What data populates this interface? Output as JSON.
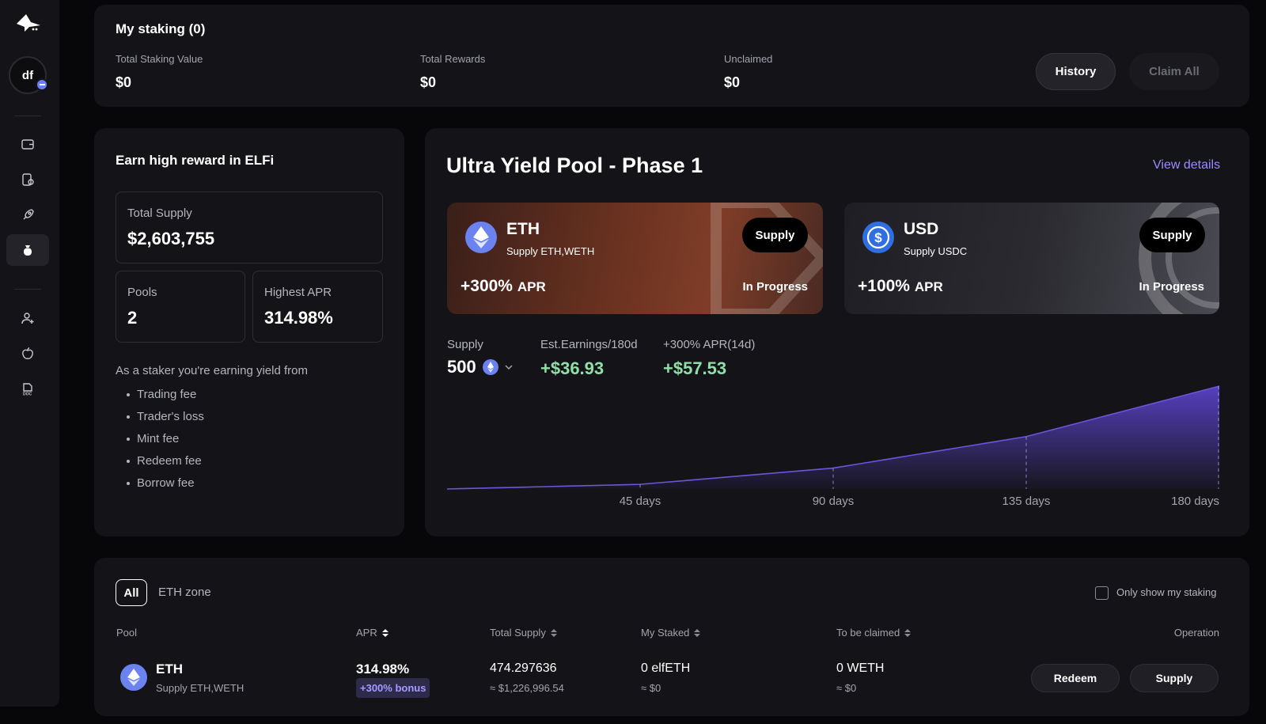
{
  "sidebar": {
    "avatar_initials": "df",
    "nav": [
      {
        "name": "wallet-icon",
        "active": false
      },
      {
        "name": "pool-icon",
        "active": false
      },
      {
        "name": "rocket-icon",
        "active": false
      },
      {
        "name": "bag-icon",
        "active": true
      },
      {
        "name": "user-add-icon",
        "active": false
      },
      {
        "name": "apple-icon",
        "active": false
      },
      {
        "name": "doc-icon",
        "active": false
      }
    ]
  },
  "staking": {
    "title": "My staking (0)",
    "total_value_label": "Total Staking Value",
    "total_value": "$0",
    "total_rewards_label": "Total Rewards",
    "total_rewards": "$0",
    "unclaimed_label": "Unclaimed",
    "unclaimed": "$0",
    "history_label": "History",
    "claim_all_label": "Claim All"
  },
  "earn": {
    "title": "Earn high reward in ELFi",
    "total_supply_label": "Total Supply",
    "total_supply": "$2,603,755",
    "pools_label": "Pools",
    "pools": "2",
    "highest_apr_label": "Highest APR",
    "highest_apr": "314.98%",
    "yield_intro": "As a staker you're earning yield from",
    "yield_sources": [
      "Trading fee",
      "Trader's loss",
      "Mint fee",
      "Redeem fee",
      "Borrow fee"
    ]
  },
  "ultra": {
    "title": "Ultra Yield Pool - Phase 1",
    "view_details": "View details",
    "pools": [
      {
        "asset": "ETH",
        "sub": "Supply ETH,WETH",
        "apr": "+300%",
        "apr_suffix": "APR",
        "status": "In Progress",
        "supply_label": "Supply"
      },
      {
        "asset": "USD",
        "sub": "Supply USDC",
        "apr": "+100%",
        "apr_suffix": "APR",
        "status": "In Progress",
        "supply_label": "Supply"
      }
    ],
    "calc": {
      "supply_label": "Supply",
      "supply_value": "500",
      "est_label": "Est.Earnings/180d",
      "est_value": "+$36.93",
      "apr14_label": "+300% APR(14d)",
      "apr14_value": "+$57.53"
    },
    "chart_data": {
      "type": "area",
      "x_ticks": [
        "45 days",
        "90 days",
        "135 days",
        "180 days"
      ],
      "x": [
        0,
        45,
        90,
        135,
        180
      ],
      "values": [
        0,
        1.4,
        6.3,
        15.8,
        31.0
      ],
      "color": "#6c55d8"
    }
  },
  "table": {
    "tabs": [
      "All",
      "ETH zone"
    ],
    "only_mine_label": "Only show my staking",
    "columns": {
      "pool": "Pool",
      "apr": "APR",
      "total_supply": "Total Supply",
      "my_staked": "My Staked",
      "to_be_claimed": "To be claimed",
      "operation": "Operation"
    },
    "rows": [
      {
        "asset": "ETH",
        "sub": "Supply ETH,WETH",
        "apr": "314.98%",
        "bonus": "+300% bonus",
        "total_supply": "474.297636",
        "total_supply_usd": "≈ $1,226,996.54",
        "my_staked": "0 elfETH",
        "my_staked_usd": "≈ $0",
        "to_claim": "0 WETH",
        "to_claim_usd": "≈ $0",
        "redeem_label": "Redeem",
        "supply_label": "Supply"
      }
    ]
  },
  "colors": {
    "accent": "#9a8cff",
    "positive": "#8ee0a8",
    "card": "#141418"
  }
}
